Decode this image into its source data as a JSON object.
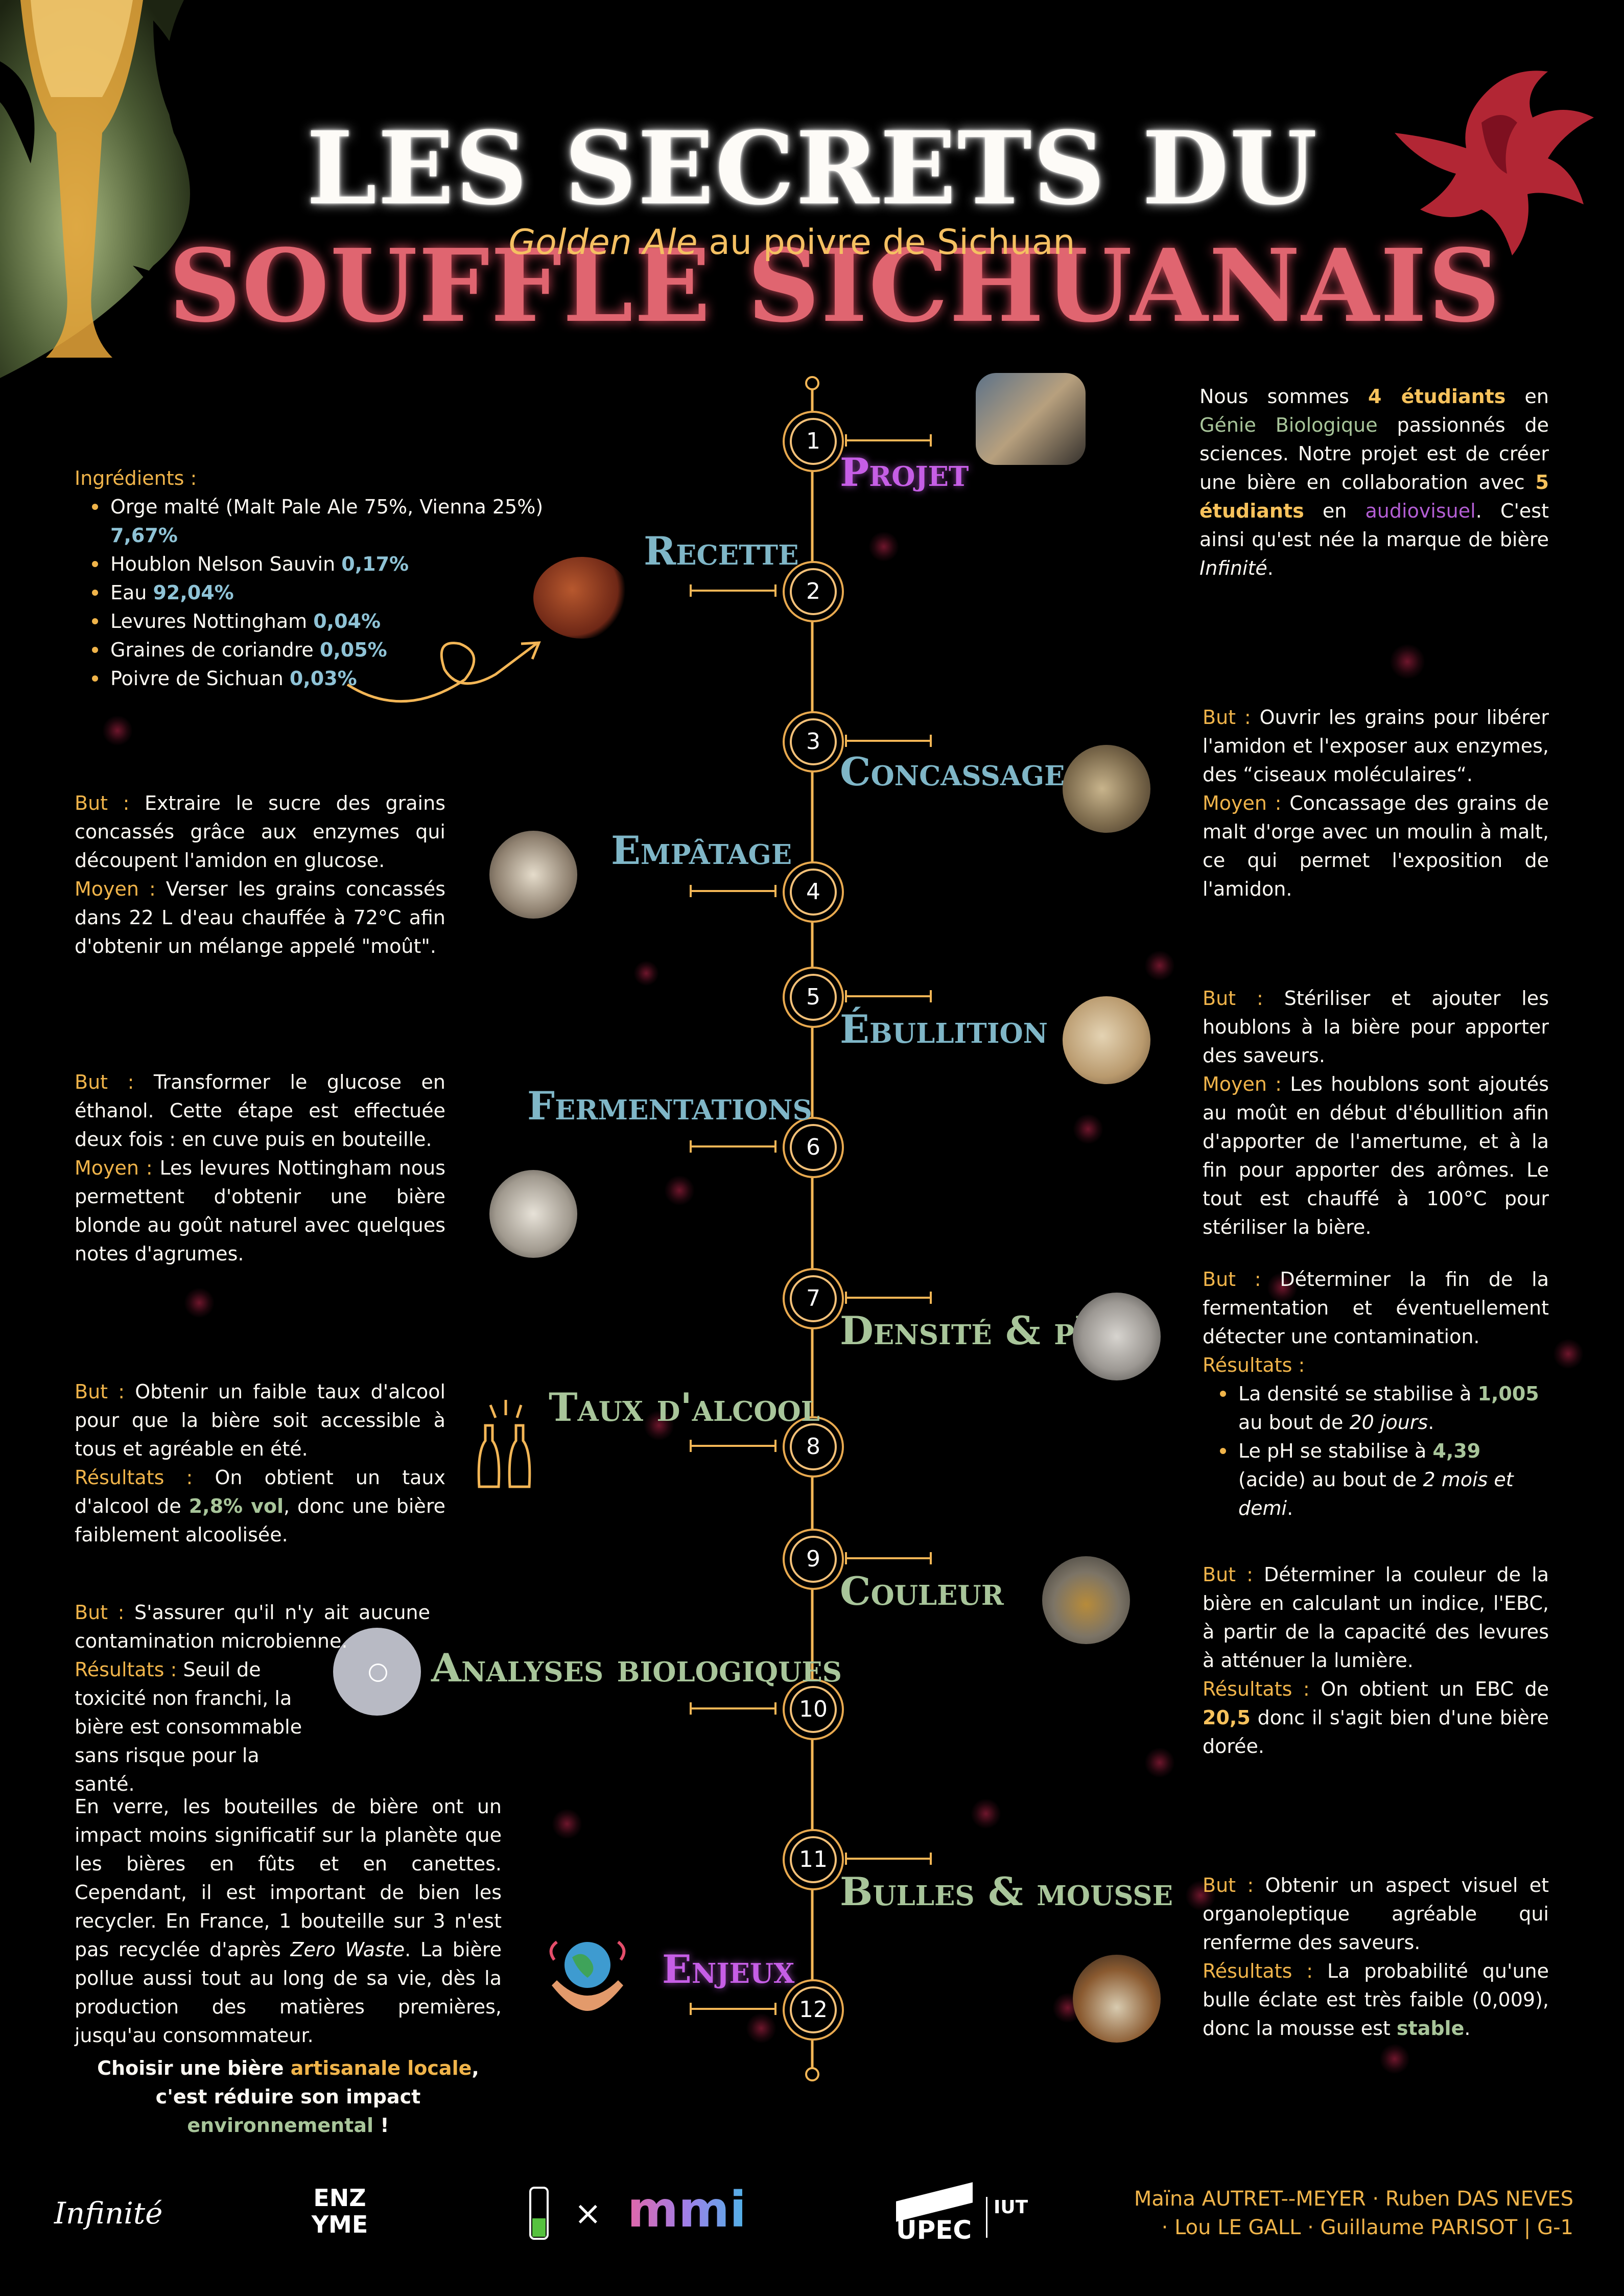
{
  "header": {
    "title_part1": "LES SECRETS DU",
    "title_part2": "SOUFFLE SICHUANAIS",
    "subtitle_italic": "Golden Ale",
    "subtitle_rest": "au poivre de Sichuan"
  },
  "colors": {
    "accent_orange": "#f0b44a",
    "title_red": "#e06570",
    "purple": "#c65ee6",
    "teal": "#7fb6c7",
    "green": "#a8c59a"
  },
  "steps": [
    {
      "n": "1",
      "title": "Projet"
    },
    {
      "n": "2",
      "title": "Recette"
    },
    {
      "n": "3",
      "title": "Concassage"
    },
    {
      "n": "4",
      "title": "Empâtage"
    },
    {
      "n": "5",
      "title": "Ébullition"
    },
    {
      "n": "6",
      "title": "Fermentations"
    },
    {
      "n": "7",
      "title": "Densité & pH"
    },
    {
      "n": "8",
      "title": "Taux d'alcool"
    },
    {
      "n": "9",
      "title": "Couleur"
    },
    {
      "n": "10",
      "title": "Analyses biologiques"
    },
    {
      "n": "11",
      "title": "Bulles & mousse"
    },
    {
      "n": "12",
      "title": "Enjeux"
    }
  ],
  "projet": {
    "t1": "Nous sommes ",
    "h1": "4 étudiants",
    "t2": " en ",
    "h2": "Génie Biologique",
    "t3": " passionnés de sciences. Notre projet est de créer une bière en collaboration avec ",
    "h3": "5 étudiants",
    "t4": " en ",
    "h4": "audiovisuel",
    "t5": ". C'est ainsi qu'est née la marque de bière ",
    "h5": "Infinité",
    "t6": "."
  },
  "recette": {
    "label": "Ingrédients :",
    "items": [
      {
        "text": "Orge malté (Malt Pale Ale 75%, Vienna 25%) ",
        "value": "7,67%"
      },
      {
        "text": "Houblon Nelson Sauvin ",
        "value": "0,17%"
      },
      {
        "text": "Eau ",
        "value": "92,04%"
      },
      {
        "text": "Levures Nottingham ",
        "value": "0,04%"
      },
      {
        "text": "Graines de coriandre ",
        "value": "0,05%"
      },
      {
        "text": "Poivre de Sichuan ",
        "value": "0,03%"
      }
    ]
  },
  "concassage": {
    "but_label": "But :",
    "but": " Ouvrir les grains pour libérer l'amidon et l'exposer aux enzymes, des “ciseaux moléculaires“.",
    "moyen_label": "Moyen :",
    "moyen": " Concassage des grains de malt d'orge avec un moulin à malt, ce qui permet l'exposition de l'amidon."
  },
  "empatage": {
    "but_label": "But :",
    "but": " Extraire le sucre des grains concassés grâce aux enzymes qui découpent l'amidon en glucose.",
    "moyen_label": "Moyen :",
    "moyen": " Verser les grains concassés dans 22 L d'eau chauffée à 72°C afin d'obtenir un mélange appelé \"moût\"."
  },
  "ebullition": {
    "but_label": "But :",
    "but": " Stériliser et ajouter les houblons à la bière pour apporter des saveurs.",
    "moyen_label": "Moyen :",
    "moyen": " Les houblons sont ajoutés au moût en début d'ébullition afin d'apporter de l'amertume, et à la fin pour apporter des arômes. Le tout est chauffé à 100°C pour stériliser la bière."
  },
  "fermentations": {
    "but_label": "But :",
    "but": " Transformer le glucose en éthanol. Cette étape est effectuée deux fois : en cuve puis en bouteille.",
    "moyen_label": "Moyen :",
    "moyen": " Les levures Nottingham nous permettent d'obtenir une bière blonde au goût naturel avec quelques notes d'agrumes."
  },
  "densite": {
    "but_label": "But :",
    "but": " Déterminer la fin de la fermentation et éventuellement détecter une contamination.",
    "res_label": "Résultats :",
    "r1_a": "La densité se stabilise à ",
    "r1_v": "1,005",
    "r1_b": " au bout de ",
    "r1_i": "20 jours",
    "r1_c": ".",
    "r2_a": "Le pH se stabilise à ",
    "r2_v": "4,39",
    "r2_b": " (acide) au bout de ",
    "r2_i": "2 mois et demi",
    "r2_c": "."
  },
  "alcool": {
    "but_label": "But :",
    "but": "  Obtenir un faible taux d'alcool pour que la bière soit accessible à tous et agréable en été.",
    "res_label": "Résultats :",
    "res_a": " On obtient un taux d'alcool de ",
    "res_v": "2,8% vol",
    "res_b": ", donc une bière faiblement alcoolisée."
  },
  "couleur": {
    "but_label": "But :",
    "but": " Déterminer la couleur de la bière en calculant un indice, l'EBC, à partir de la capacité des levures à atténuer la lumière.",
    "res_label": "Résultats :",
    "res_a": " On obtient un EBC de ",
    "res_v": "20,5",
    "res_b": " donc il s'agit bien d'une bière dorée."
  },
  "analyses": {
    "but_label": "But :",
    "but": " S'assurer qu'il n'y ait aucune contamination microbienne.",
    "res_label": "Résultats :",
    "res": " Seuil de toxicité non franchi, la bière est consommable sans risque pour la santé."
  },
  "bulles": {
    "but_label": "But :",
    "but": " Obtenir un aspect visuel et organoleptique agréable qui renferme des saveurs.",
    "res_label": "Résultats :",
    "res_a": " La probabilité qu'une bulle éclate est très faible (0,009), donc la mousse est ",
    "res_v": "stable",
    "res_b": "."
  },
  "enjeux": {
    "t1": "En verre, les bouteilles de bière ont un impact moins significatif sur la planète que les bières en fûts et en canettes. Cependant, il est important de bien les recycler. En France, 1 bouteille sur 3 n'est pas recyclée d'après ",
    "i1": "Zero Waste",
    "t2": ". La bière pollue aussi tout au long de sa vie, dès la production des matières premières, jusqu'au consommateur.",
    "c1": "Choisir une bière ",
    "c1h": "artisanale locale",
    "c1e": ",",
    "c2": "c'est réduire son impact ",
    "c2h": "environnemental",
    "c2e": " !"
  },
  "footer": {
    "logo_infinite": "Infinité",
    "logo_enzyme": "ENZ YME",
    "times": "×",
    "logo_mmi": "mmi",
    "logo_upec": "UPEC",
    "logo_iut": "IUT",
    "names_line1": "Maïna AUTRET--MEYER  ·  Ruben DAS NEVES",
    "names_line2": "·  Lou LE GALL  ·  Guillaume PARISOT | G-1"
  }
}
